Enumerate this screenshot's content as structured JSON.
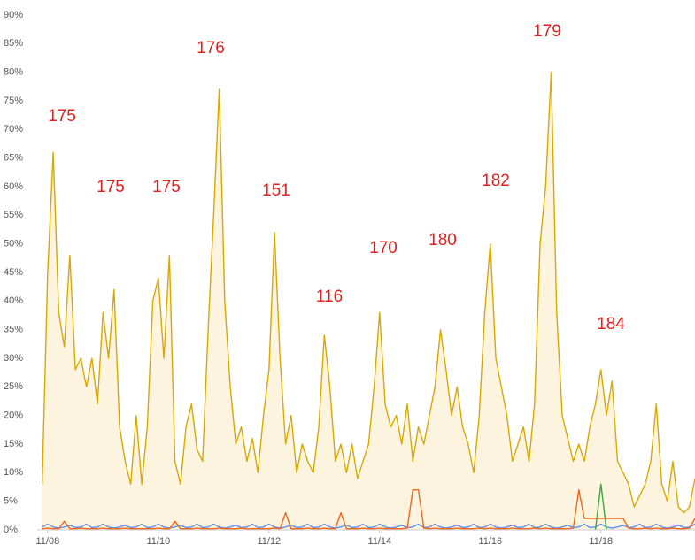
{
  "chart_data": {
    "type": "line",
    "x": [
      7.9,
      8.0,
      8.1,
      8.2,
      8.3,
      8.4,
      8.5,
      8.6,
      8.7,
      8.8,
      8.9,
      9.0,
      9.1,
      9.2,
      9.3,
      9.4,
      9.5,
      9.6,
      9.7,
      9.8,
      9.9,
      10.0,
      10.1,
      10.2,
      10.3,
      10.4,
      10.5,
      10.6,
      10.7,
      10.8,
      10.9,
      11.0,
      11.1,
      11.2,
      11.3,
      11.4,
      11.5,
      11.6,
      11.7,
      11.8,
      11.9,
      12.0,
      12.1,
      12.2,
      12.3,
      12.4,
      12.5,
      12.6,
      12.7,
      12.8,
      12.9,
      13.0,
      13.1,
      13.2,
      13.3,
      13.4,
      13.5,
      13.6,
      13.7,
      13.8,
      13.9,
      14.0,
      14.1,
      14.2,
      14.3,
      14.4,
      14.5,
      14.6,
      14.7,
      14.8,
      14.9,
      15.0,
      15.1,
      15.2,
      15.3,
      15.4,
      15.5,
      15.6,
      15.7,
      15.8,
      15.9,
      16.0,
      16.1,
      16.2,
      16.3,
      16.4,
      16.5,
      16.6,
      16.7,
      16.8,
      16.9,
      17.0,
      17.1,
      17.2,
      17.3,
      17.4,
      17.5,
      17.6,
      17.7,
      17.8,
      17.9,
      18.0,
      18.1,
      18.2,
      18.3,
      18.4,
      18.5,
      18.6,
      18.7,
      18.8,
      18.9,
      19.0,
      19.1,
      19.2,
      19.3,
      19.4,
      19.5,
      19.6,
      19.7
    ],
    "series": [
      {
        "color": "#d9a800",
        "fill": "#fdf4e0",
        "values": [
          8,
          45,
          66,
          38,
          32,
          48,
          28,
          30,
          25,
          30,
          22,
          38,
          30,
          42,
          18,
          12,
          8,
          20,
          8,
          18,
          40,
          44,
          30,
          48,
          12,
          8,
          18,
          22,
          14,
          12,
          35,
          55,
          77,
          40,
          25,
          15,
          18,
          12,
          16,
          10,
          20,
          28,
          52,
          30,
          15,
          20,
          10,
          15,
          12,
          10,
          18,
          34,
          25,
          12,
          15,
          10,
          15,
          9,
          12,
          15,
          25,
          38,
          22,
          18,
          20,
          15,
          22,
          12,
          18,
          15,
          20,
          25,
          35,
          28,
          20,
          25,
          18,
          15,
          10,
          20,
          38,
          50,
          30,
          25,
          20,
          12,
          15,
          18,
          12,
          22,
          50,
          60,
          80,
          38,
          20,
          16,
          12,
          15,
          12,
          18,
          22,
          28,
          20,
          26,
          12,
          10,
          8,
          4,
          6,
          8,
          12,
          22,
          8,
          5,
          12,
          4,
          3,
          4,
          9
        ]
      },
      {
        "color": "#5b8def",
        "values": [
          0.5,
          1,
          0.5,
          0.3,
          0.5,
          0.8,
          0.4,
          0.5,
          1,
          0.4,
          0.5,
          1,
          0.5,
          0.3,
          0.5,
          0.8,
          0.4,
          0.5,
          1,
          0.4,
          0.5,
          1,
          0.5,
          0.3,
          0.5,
          0.8,
          0.4,
          0.5,
          1,
          0.4,
          0.5,
          1,
          0.5,
          0.3,
          0.5,
          0.8,
          0.4,
          0.5,
          1,
          0.4,
          0.5,
          1,
          0.5,
          0.3,
          0.5,
          0.8,
          0.4,
          0.5,
          1,
          0.4,
          0.5,
          1,
          0.5,
          0.3,
          0.5,
          0.8,
          0.4,
          0.5,
          1,
          0.4,
          0.5,
          1,
          0.5,
          0.3,
          0.5,
          0.8,
          0.4,
          0.5,
          1,
          0.4,
          0.5,
          1,
          0.5,
          0.3,
          0.5,
          0.8,
          0.4,
          0.5,
          1,
          0.4,
          0.5,
          1,
          0.5,
          0.3,
          0.5,
          0.8,
          0.4,
          0.5,
          1,
          0.4,
          0.5,
          1,
          0.5,
          0.3,
          0.5,
          0.8,
          0.4,
          0.5,
          1,
          0.4,
          0.5,
          1,
          0.5,
          0.3,
          0.5,
          0.8,
          0.4,
          0.5,
          1,
          0.4,
          0.5,
          1,
          0.5,
          0.3,
          0.5,
          0.8,
          0.4,
          0.5,
          1
        ]
      },
      {
        "color": "#f0661a",
        "values": [
          0.2,
          0.3,
          0.2,
          0.2,
          1.5,
          0.2,
          0.2,
          0.3,
          0.2,
          0.2,
          0.2,
          0.3,
          0.2,
          0.2,
          0.2,
          0.3,
          0.2,
          0.2,
          0.2,
          0.2,
          0.2,
          0.3,
          0.2,
          0.2,
          1.5,
          0.2,
          0.2,
          0.2,
          0.3,
          0.2,
          0.2,
          0.2,
          0.3,
          0.2,
          0.2,
          0.2,
          0.3,
          0.2,
          0.2,
          0.2,
          0.2,
          0.2,
          0.3,
          0.2,
          3,
          0.2,
          0.2,
          0.2,
          0.3,
          0.2,
          0.2,
          0.3,
          0.2,
          0.2,
          3,
          0.2,
          0.2,
          0.2,
          0.3,
          0.2,
          0.2,
          0.3,
          0.2,
          0.2,
          0.2,
          0.2,
          0.3,
          7,
          7,
          0.3,
          0.2,
          0.3,
          0.2,
          0.2,
          0.2,
          0.3,
          0.2,
          0.2,
          0.2,
          0.3,
          0.2,
          0.3,
          0.2,
          0.2,
          0.2,
          0.3,
          0.2,
          0.2,
          0.2,
          0.3,
          0.2,
          0.3,
          0.2,
          0.2,
          0.2,
          0.2,
          0.3,
          7,
          2,
          2,
          2,
          2,
          2,
          2,
          2,
          2,
          0.3,
          0.2,
          0.2,
          0.3,
          0.2,
          0.3,
          0.2,
          0.2,
          0.3,
          0.2,
          0.2,
          0.3,
          2
        ]
      },
      {
        "color": "#3aa83a",
        "x": [
          17.9,
          18.0,
          18.1
        ],
        "values": [
          0,
          8,
          0
        ]
      }
    ],
    "xlim": [
      7.81,
      19.7
    ],
    "xticks": [
      {
        "value": 8,
        "label": "11/08"
      },
      {
        "value": 10,
        "label": "11/10"
      },
      {
        "value": 12,
        "label": "11/12"
      },
      {
        "value": 14,
        "label": "11/14"
      },
      {
        "value": 16,
        "label": "11/16"
      },
      {
        "value": 18,
        "label": "11/18"
      }
    ],
    "ylim": [
      0,
      90
    ],
    "yticks": [
      {
        "value": 0,
        "label": "0%"
      },
      {
        "value": 5,
        "label": "5%"
      },
      {
        "value": 10,
        "label": "10%"
      },
      {
        "value": 15,
        "label": "15%"
      },
      {
        "value": 20,
        "label": "20%"
      },
      {
        "value": 25,
        "label": "25%"
      },
      {
        "value": 30,
        "label": "30%"
      },
      {
        "value": 35,
        "label": "35%"
      },
      {
        "value": 40,
        "label": "40%"
      },
      {
        "value": 45,
        "label": "45%"
      },
      {
        "value": 50,
        "label": "50%"
      },
      {
        "value": 55,
        "label": "55%"
      },
      {
        "value": 60,
        "label": "60%"
      },
      {
        "value": 65,
        "label": "65%"
      },
      {
        "value": 70,
        "label": "70%"
      },
      {
        "value": 75,
        "label": "75%"
      },
      {
        "value": 80,
        "label": "80%"
      },
      {
        "value": 85,
        "label": "85%"
      },
      {
        "value": 90,
        "label": "90%"
      }
    ],
    "grid": false,
    "annotation_color": "#e0201f",
    "annotations": [
      "175",
      "175",
      "175",
      "176",
      "151",
      "116",
      "170",
      "180",
      "182",
      "179",
      "184"
    ]
  }
}
